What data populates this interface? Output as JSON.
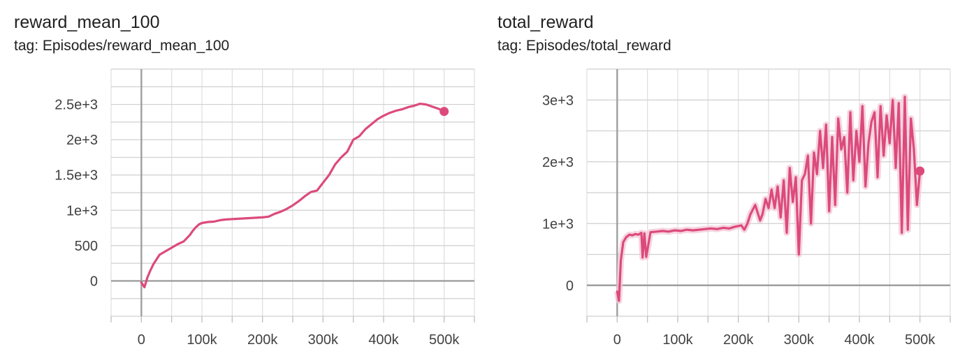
{
  "chart_data": [
    {
      "type": "line",
      "title": "reward_mean_100",
      "subtitle": "tag: Episodes/reward_mean_100",
      "xlabel": "",
      "ylabel": "",
      "xlim": [
        -50000,
        550000
      ],
      "ylim": [
        -500,
        3000
      ],
      "x_ticks": [
        {
          "value": 0,
          "label": "0"
        },
        {
          "value": 100000,
          "label": "100k"
        },
        {
          "value": 200000,
          "label": "200k"
        },
        {
          "value": 300000,
          "label": "300k"
        },
        {
          "value": 400000,
          "label": "400k"
        },
        {
          "value": 500000,
          "label": "500k"
        }
      ],
      "y_ticks": [
        {
          "value": 0,
          "label": "0"
        },
        {
          "value": 500,
          "label": "500"
        },
        {
          "value": 1000,
          "label": "1e+3"
        },
        {
          "value": 1500,
          "label": "1.5e+3"
        },
        {
          "value": 2000,
          "label": "2e+3"
        },
        {
          "value": 2500,
          "label": "2.5e+3"
        }
      ],
      "grid": true,
      "color": "#dc4a7c",
      "series": [
        {
          "x": [
            0,
            5000,
            10000,
            15000,
            20000,
            30000,
            40000,
            50000,
            60000,
            70000,
            80000,
            85000,
            90000,
            95000,
            100000,
            110000,
            120000,
            130000,
            140000,
            150000,
            160000,
            170000,
            180000,
            190000,
            200000,
            210000,
            220000,
            230000,
            240000,
            250000,
            260000,
            270000,
            280000,
            290000,
            300000,
            310000,
            320000,
            330000,
            340000,
            350000,
            360000,
            370000,
            380000,
            390000,
            400000,
            410000,
            420000,
            430000,
            440000,
            450000,
            460000,
            470000,
            480000,
            490000,
            500000
          ],
          "y": [
            -20,
            -90,
            50,
            150,
            240,
            370,
            420,
            470,
            520,
            560,
            650,
            710,
            760,
            800,
            820,
            835,
            840,
            860,
            870,
            875,
            880,
            885,
            890,
            895,
            900,
            910,
            950,
            980,
            1020,
            1070,
            1130,
            1200,
            1260,
            1280,
            1390,
            1500,
            1650,
            1750,
            1830,
            2000,
            2050,
            2150,
            2220,
            2290,
            2340,
            2380,
            2410,
            2430,
            2460,
            2480,
            2510,
            2500,
            2470,
            2440,
            2400
          ]
        }
      ]
    },
    {
      "type": "line",
      "title": "total_reward",
      "subtitle": "tag: Episodes/total_reward",
      "xlabel": "",
      "ylabel": "",
      "xlim": [
        -50000,
        550000
      ],
      "ylim": [
        -500,
        3500
      ],
      "x_ticks": [
        {
          "value": 0,
          "label": "0"
        },
        {
          "value": 100000,
          "label": "100k"
        },
        {
          "value": 200000,
          "label": "200k"
        },
        {
          "value": 300000,
          "label": "300k"
        },
        {
          "value": 400000,
          "label": "400k"
        },
        {
          "value": 500000,
          "label": "500k"
        }
      ],
      "y_ticks": [
        {
          "value": 0,
          "label": "0"
        },
        {
          "value": 1000,
          "label": "1e+3"
        },
        {
          "value": 2000,
          "label": "2e+3"
        },
        {
          "value": 3000,
          "label": "3e+3"
        }
      ],
      "grid": true,
      "color": "#dc4a7c",
      "raw_color": "#f3c5d6",
      "series": [
        {
          "x": [
            0,
            3000,
            6000,
            10000,
            15000,
            20000,
            25000,
            30000,
            35000,
            40000,
            42000,
            45000,
            48000,
            55000,
            65000,
            75000,
            85000,
            95000,
            105000,
            115000,
            125000,
            135000,
            145000,
            155000,
            165000,
            175000,
            185000,
            195000,
            205000,
            210000,
            215000,
            220000,
            228000,
            236000,
            240000,
            245000,
            250000,
            255000,
            260000,
            265000,
            270000,
            275000,
            280000,
            285000,
            290000,
            295000,
            300000,
            305000,
            310000,
            315000,
            320000,
            325000,
            330000,
            335000,
            340000,
            345000,
            350000,
            355000,
            360000,
            365000,
            370000,
            375000,
            380000,
            385000,
            390000,
            395000,
            400000,
            405000,
            410000,
            415000,
            420000,
            425000,
            430000,
            435000,
            440000,
            445000,
            450000,
            455000,
            460000,
            465000,
            470000,
            475000,
            480000,
            485000,
            490000,
            495000,
            500000
          ],
          "y": [
            -100,
            -250,
            400,
            700,
            780,
            820,
            810,
            830,
            820,
            850,
            450,
            840,
            460,
            860,
            870,
            880,
            870,
            890,
            880,
            900,
            890,
            900,
            910,
            920,
            910,
            930,
            920,
            950,
            970,
            900,
            1000,
            1150,
            1300,
            1050,
            1150,
            1400,
            1250,
            1550,
            1250,
            1600,
            1100,
            1700,
            850,
            1900,
            1350,
            1750,
            500,
            1700,
            1800,
            2100,
            1000,
            2150,
            1800,
            2500,
            1900,
            2600,
            1200,
            2400,
            1300,
            2700,
            2200,
            2400,
            1500,
            2800,
            1700,
            2500,
            2000,
            2900,
            1600,
            2300,
            2650,
            2800,
            1750,
            2900,
            2100,
            2750,
            2300,
            3000,
            1900,
            2950,
            850,
            3050,
            900,
            2700,
            2200,
            1300,
            1850
          ]
        }
      ]
    }
  ]
}
